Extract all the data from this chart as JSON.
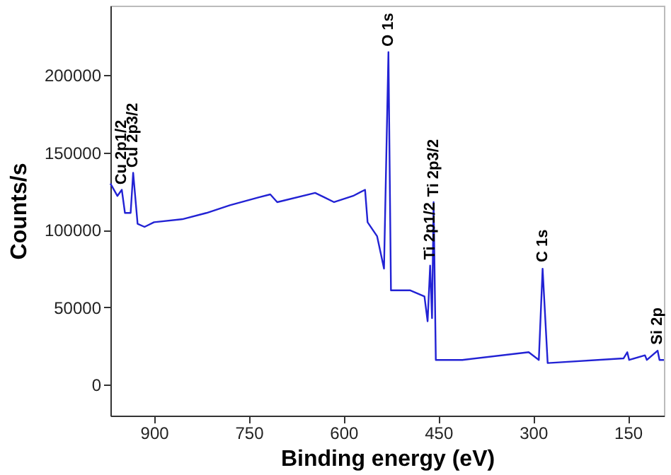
{
  "chart_data": {
    "type": "line",
    "xlabel": "Binding energy (eV)",
    "ylabel": "Counts/s",
    "xlim": [
      969,
      93
    ],
    "ylim": [
      -20000,
      245000
    ],
    "xticks": [
      900,
      750,
      600,
      450,
      300,
      150
    ],
    "yticks": [
      0,
      50000,
      100000,
      150000,
      200000
    ],
    "grid": false,
    "marker": "none",
    "line_style": "solid",
    "series": [
      {
        "color": "#2222d4",
        "x": [
          969,
          958,
          951,
          946,
          937,
          933,
          926,
          915,
          900,
          855,
          817,
          780,
          735,
          716,
          705,
          645,
          630,
          615,
          585,
          566,
          562,
          547,
          536,
          529,
          525,
          495,
          472,
          467,
          463,
          460,
          457.5,
          454,
          412,
          307,
          291,
          285,
          277,
          157,
          151,
          148,
          123,
          120,
          103,
          100,
          93
        ],
        "values": [
          130000,
          122000,
          126000,
          111000,
          111000,
          137000,
          104000,
          102000,
          105000,
          107000,
          111000,
          116000,
          121000,
          123000,
          118000,
          124000,
          121000,
          118000,
          122000,
          126000,
          105000,
          96000,
          75000,
          215000,
          61000,
          61000,
          57000,
          41000,
          77000,
          43000,
          118000,
          16000,
          16000,
          21000,
          16000,
          75000,
          14000,
          17000,
          21000,
          16000,
          19000,
          16000,
          22000,
          16000,
          16000
        ]
      }
    ],
    "annotations": [
      {
        "text": "Cu 2p1/2",
        "x": 951,
        "y": 125600
      },
      {
        "text": "Cu 2p3/2",
        "x": 933,
        "y": 136600
      },
      {
        "text": "O 1s",
        "x": 529,
        "y": 214900
      },
      {
        "text": "Ti 2p1/2",
        "x": 463,
        "y": 77100
      },
      {
        "text": "Ti 2p3/2",
        "x": 457.5,
        "y": 117800
      },
      {
        "text": "C 1s",
        "x": 285,
        "y": 75500
      },
      {
        "text": "Si 2p",
        "x": 103,
        "y": 22200
      }
    ]
  }
}
